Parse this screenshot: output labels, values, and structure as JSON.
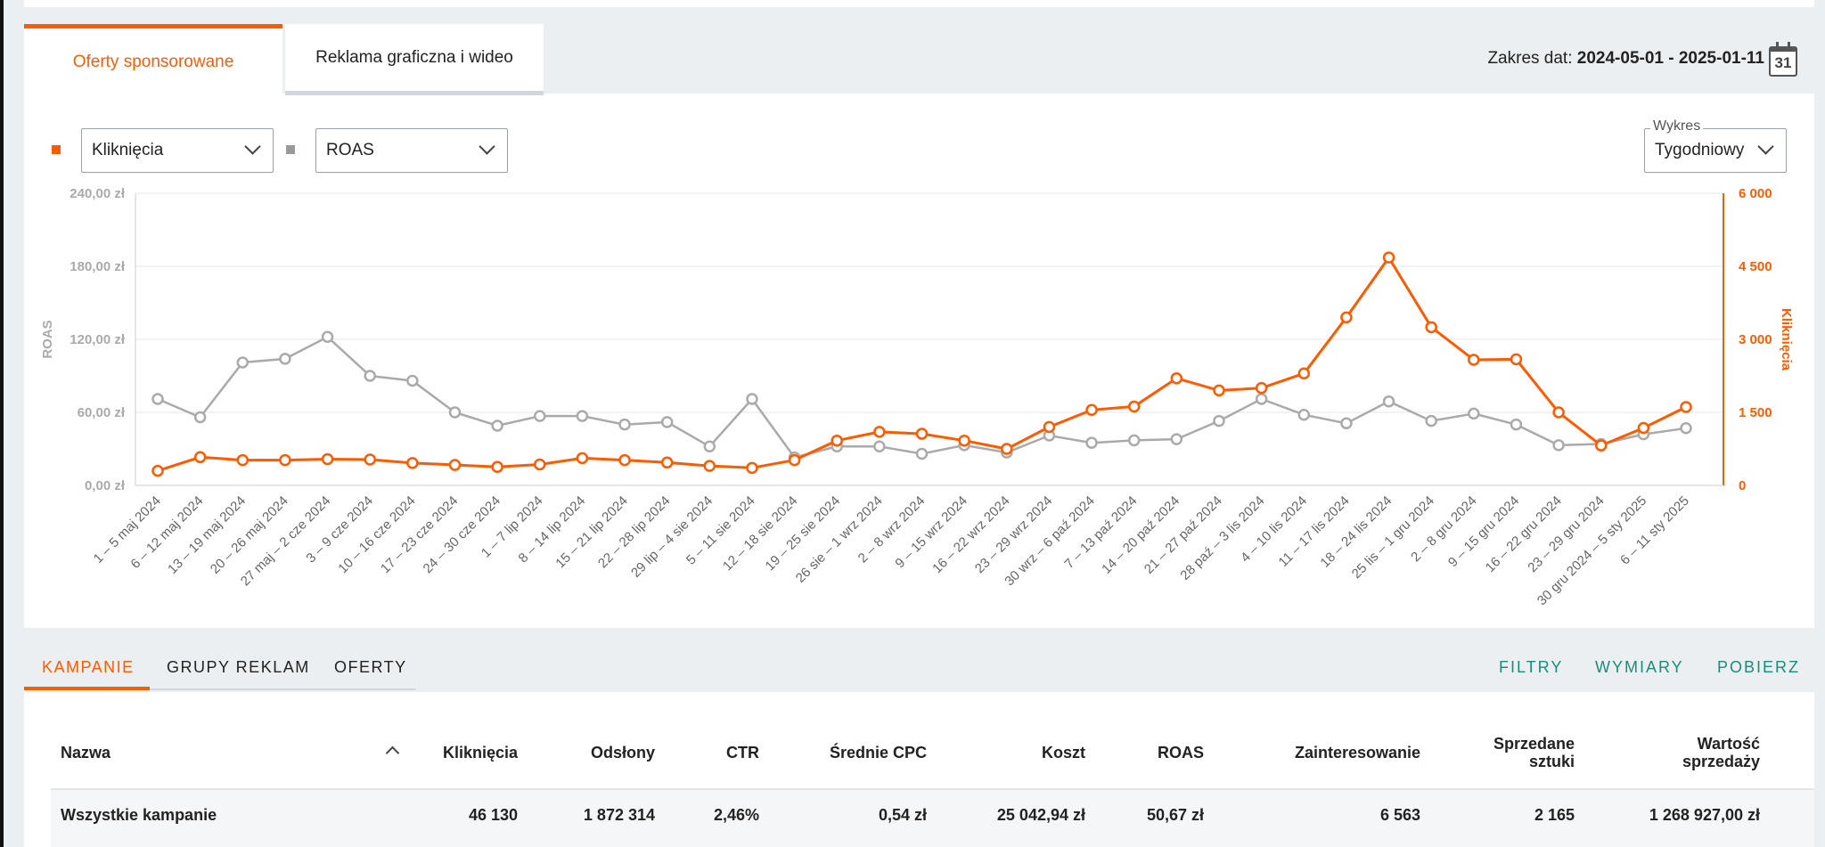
{
  "tabs": [
    {
      "label": "Oferty sponsorowane",
      "active": true
    },
    {
      "label": "Reklama graficzna i wideo",
      "active": false
    }
  ],
  "date_range": {
    "label": "Zakres dat:",
    "value": "2024-05-01 - 2025-01-11",
    "calendar_day": "31"
  },
  "metric_select_1": {
    "value": "Kliknięcia",
    "color": "#ff5a00"
  },
  "metric_select_2": {
    "value": "ROAS",
    "color": "#999999"
  },
  "chart_mode": {
    "label": "Wykres",
    "value": "Tygodniowy"
  },
  "chart_data": {
    "type": "line",
    "ylabel_left": "ROAS",
    "ylabel_right": "Kliknięcia",
    "left_ticks": [
      "0,00 zł",
      "60,00 zł",
      "120,00 zł",
      "180,00 zł",
      "240,00 zł"
    ],
    "right_ticks": [
      "0",
      "1 500",
      "3 000",
      "4 500",
      "6 000"
    ],
    "ylim_left": [
      0,
      240
    ],
    "ylim_right": [
      0,
      6000
    ],
    "grid": true,
    "x": [
      "1 – 5 maj 2024",
      "6 – 12 maj 2024",
      "13 – 19 maj 2024",
      "20 – 26 maj 2024",
      "27 maj – 2 cze 2024",
      "3 – 9 cze 2024",
      "10 – 16 cze 2024",
      "17 – 23 cze 2024",
      "24 – 30 cze 2024",
      "1 – 7 lip 2024",
      "8 – 14 lip 2024",
      "15 – 21 lip 2024",
      "22 – 28 lip 2024",
      "29 lip – 4 sie 2024",
      "5 – 11 sie 2024",
      "12 – 18 sie 2024",
      "19 – 25 sie 2024",
      "26 sie – 1 wrz 2024",
      "2 – 8 wrz 2024",
      "9 – 15 wrz 2024",
      "16 – 22 wrz 2024",
      "23 – 29 wrz 2024",
      "30 wrz – 6 paź 2024",
      "7 – 13 paź 2024",
      "14 – 20 paź 2024",
      "21 – 27 paź 2024",
      "28 paź – 3 lis 2024",
      "4 – 10 lis 2024",
      "11 – 17 lis 2024",
      "18 – 24 lis 2024",
      "25 lis – 1 gru 2024",
      "2 – 8 gru 2024",
      "9 – 15 gru 2024",
      "16 – 22 gru 2024",
      "23 – 29 gru 2024",
      "30 gru 2024 – 5 sty 2025",
      "6 – 11 sty 2025"
    ],
    "series": [
      {
        "name": "Kliknięcia",
        "axis": "right",
        "color": "#ff5a00",
        "values": [
          300,
          580,
          520,
          520,
          540,
          530,
          460,
          420,
          380,
          430,
          560,
          520,
          470,
          400,
          360,
          520,
          920,
          1100,
          1060,
          920,
          750,
          1200,
          1550,
          1620,
          2200,
          1950,
          2000,
          2300,
          3450,
          4680,
          3250,
          2580,
          2590,
          1500,
          820,
          1180,
          1610
        ]
      },
      {
        "name": "ROAS",
        "axis": "left",
        "color": "#aaaaaa",
        "values": [
          71,
          56,
          101,
          104,
          122,
          90,
          86,
          60,
          49,
          57,
          57,
          50,
          52,
          32,
          71,
          23,
          32,
          32,
          26,
          33,
          27,
          41,
          35,
          37,
          38,
          53,
          71,
          58,
          51,
          69,
          53,
          59,
          50,
          33,
          34,
          42,
          47
        ]
      }
    ]
  },
  "sub_tabs": [
    {
      "label": "KAMPANIE",
      "active": true
    },
    {
      "label": "GRUPY REKLAM",
      "active": false
    },
    {
      "label": "OFERTY",
      "active": false
    }
  ],
  "actions": {
    "filters": "FILTRY",
    "dimensions": "WYMIARY",
    "download": "POBIERZ"
  },
  "table": {
    "headers": {
      "name": "Nazwa",
      "clicks": "Kliknięcia",
      "impressions": "Odsłony",
      "ctr": "CTR",
      "cpc": "Średnie CPC",
      "cost": "Koszt",
      "roas": "ROAS",
      "interest": "Zainteresowanie",
      "sold_1": "Sprzedane",
      "sold_2": "sztuki",
      "value_1": "Wartość",
      "value_2": "sprzedaży"
    },
    "total_row": {
      "name": "Wszystkie kampanie",
      "clicks": "46 130",
      "impressions": "1 872 314",
      "ctr": "2,46%",
      "cpc": "0,54 zł",
      "cost": "25 042,94 zł",
      "roas": "50,67 zł",
      "interest": "6 563",
      "sold": "2 165",
      "value": "1 268 927,00 zł"
    }
  }
}
